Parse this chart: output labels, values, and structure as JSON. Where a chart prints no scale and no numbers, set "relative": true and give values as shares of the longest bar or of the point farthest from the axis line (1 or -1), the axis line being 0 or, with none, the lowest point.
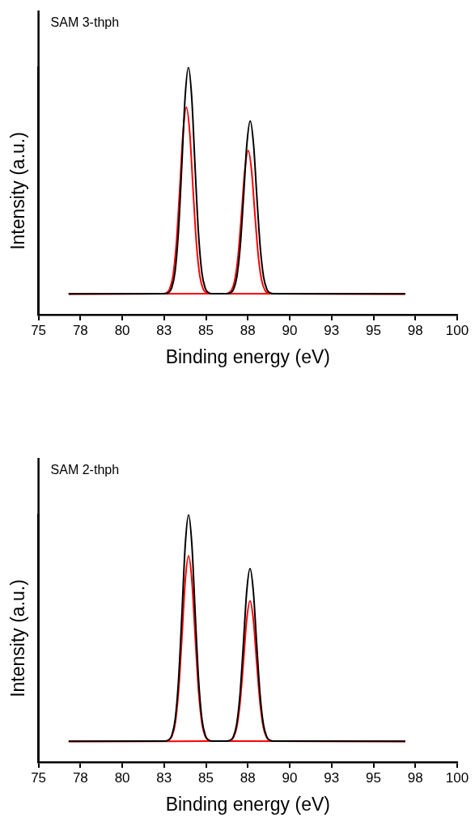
{
  "chart_data": [
    {
      "type": "line",
      "title": "SAM 3-thph",
      "xlabel": "Binding energy (eV)",
      "ylabel": "Intensity (a.u.)",
      "relative": true,
      "legend": false,
      "grid": false,
      "marker": "none",
      "tick_labels": "x",
      "xlim": [
        75,
        100
      ],
      "xticks": [
        75,
        {
          "value": 77.5,
          "label": "78"
        },
        80,
        {
          "value": 82.5,
          "label": "83"
        },
        85,
        {
          "value": 87.5,
          "label": "88"
        },
        90,
        {
          "value": 92.5,
          "label": "93"
        },
        95,
        {
          "value": 97.5,
          "label": "98"
        },
        100
      ],
      "series": [
        {
          "color": "#000000",
          "x": [
            76.8,
            82.55,
            82.75,
            82.95,
            83.15,
            83.35,
            83.55,
            83.75,
            83.95,
            84.15,
            84.35,
            84.55,
            84.75,
            84.95,
            85.15,
            85.35,
            86.24,
            86.44,
            86.64,
            86.84,
            87.04,
            87.24,
            87.44,
            87.64,
            87.84,
            88.04,
            88.24,
            88.44,
            88.64,
            88.84,
            89.04,
            96.9
          ],
          "values": [
            0.084,
            0.085,
            0.089,
            0.108,
            0.172,
            0.33,
            0.594,
            0.875,
            1.0,
            0.875,
            0.594,
            0.33,
            0.172,
            0.108,
            0.089,
            0.085,
            0.085,
            0.088,
            0.102,
            0.152,
            0.272,
            0.473,
            0.688,
            0.783,
            0.688,
            0.473,
            0.272,
            0.152,
            0.102,
            0.088,
            0.085,
            0.084
          ]
        },
        {
          "color": "#ff0000",
          "x": [
            76.8,
            82.43,
            82.63,
            82.83,
            83.03,
            83.23,
            83.43,
            83.63,
            83.83,
            84.03,
            84.23,
            84.43,
            84.63,
            84.83,
            85.03,
            85.23,
            96.9
          ],
          "values": [
            0.084,
            0.085,
            0.088,
            0.104,
            0.157,
            0.287,
            0.504,
            0.735,
            0.838,
            0.735,
            0.504,
            0.287,
            0.157,
            0.104,
            0.088,
            0.085,
            0.084
          ]
        },
        {
          "color": "#ff0000",
          "x": [
            76.8,
            86.12,
            86.32,
            86.52,
            86.72,
            86.92,
            87.12,
            87.32,
            87.52,
            87.72,
            87.92,
            88.12,
            88.32,
            88.52,
            88.72,
            88.92,
            96.9
          ],
          "values": [
            0.084,
            0.085,
            0.087,
            0.099,
            0.14,
            0.24,
            0.407,
            0.584,
            0.663,
            0.584,
            0.407,
            0.24,
            0.14,
            0.099,
            0.087,
            0.085,
            0.084
          ]
        }
      ]
    },
    {
      "type": "line",
      "title": "SAM 2-thph",
      "xlabel": "Binding energy (eV)",
      "ylabel": "Intensity (a.u.)",
      "relative": true,
      "legend": false,
      "grid": false,
      "marker": "none",
      "tick_labels": "x",
      "xlim": [
        75,
        100
      ],
      "xticks": [
        75,
        {
          "value": 77.5,
          "label": "78"
        },
        80,
        {
          "value": 82.5,
          "label": "83"
        },
        85,
        {
          "value": 87.5,
          "label": "88"
        },
        90,
        {
          "value": 92.5,
          "label": "93"
        },
        95,
        {
          "value": 97.5,
          "label": "98"
        },
        100
      ],
      "series": [
        {
          "color": "#000000",
          "x": [
            76.8,
            82.56,
            82.76,
            82.96,
            83.16,
            83.36,
            83.56,
            83.76,
            83.96,
            84.16,
            84.36,
            84.56,
            84.76,
            84.96,
            85.16,
            85.36,
            86.23,
            86.43,
            86.63,
            86.83,
            87.03,
            87.23,
            87.43,
            87.63,
            87.83,
            88.03,
            88.23,
            88.43,
            88.63,
            88.83,
            89.03,
            96.9
          ],
          "values": [
            0.084,
            0.085,
            0.089,
            0.108,
            0.172,
            0.33,
            0.594,
            0.875,
            1.0,
            0.875,
            0.594,
            0.33,
            0.172,
            0.108,
            0.089,
            0.085,
            0.085,
            0.088,
            0.102,
            0.152,
            0.272,
            0.473,
            0.688,
            0.782,
            0.688,
            0.473,
            0.272,
            0.152,
            0.102,
            0.088,
            0.085,
            0.084
          ]
        },
        {
          "color": "#ff0000",
          "x": [
            76.8,
            82.56,
            82.76,
            82.96,
            83.16,
            83.36,
            83.56,
            83.76,
            83.96,
            84.16,
            84.36,
            84.56,
            84.76,
            84.96,
            85.16,
            85.36,
            96.9
          ],
          "values": [
            0.084,
            0.085,
            0.088,
            0.104,
            0.156,
            0.285,
            0.501,
            0.731,
            0.833,
            0.731,
            0.501,
            0.285,
            0.156,
            0.104,
            0.088,
            0.085,
            0.084
          ]
        },
        {
          "color": "#ff0000",
          "x": [
            76.8,
            86.23,
            86.43,
            86.63,
            86.83,
            87.03,
            87.23,
            87.43,
            87.63,
            87.83,
            88.03,
            88.23,
            88.43,
            88.63,
            88.83,
            89.03,
            96.9
          ],
          "values": [
            0.084,
            0.085,
            0.087,
            0.099,
            0.139,
            0.237,
            0.4,
            0.574,
            0.651,
            0.574,
            0.4,
            0.237,
            0.139,
            0.099,
            0.087,
            0.085,
            0.084
          ]
        }
      ]
    }
  ]
}
